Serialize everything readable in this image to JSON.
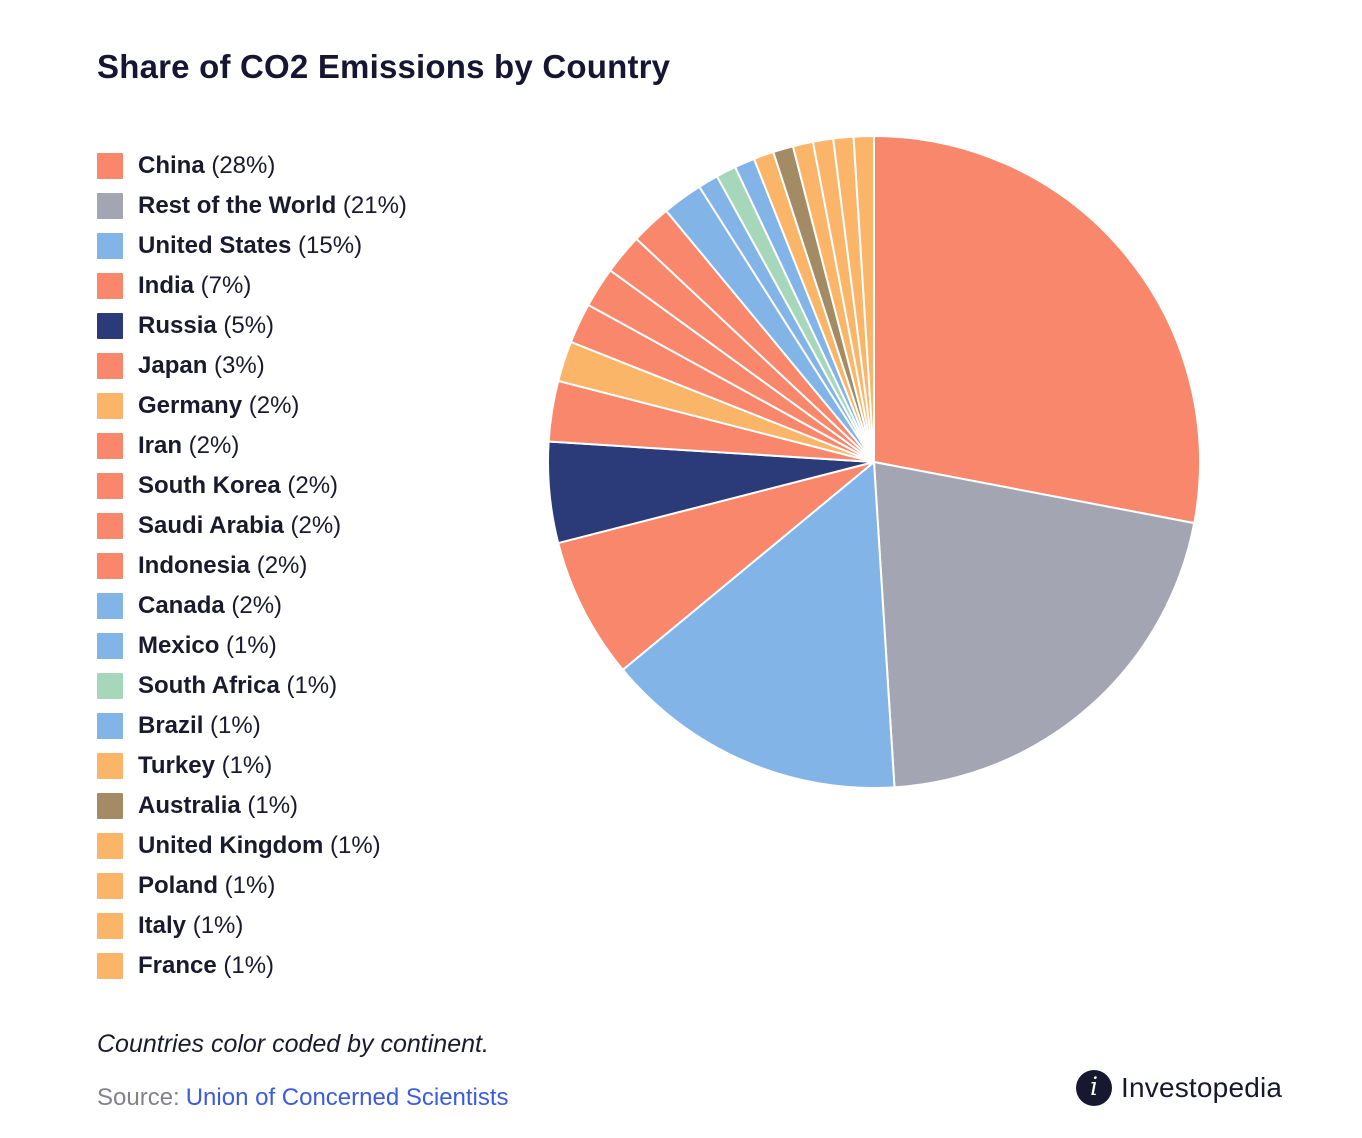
{
  "page": {
    "title": "Share of CO2 Emissions by Country",
    "note": "Countries color coded by continent.",
    "source_label": "Source:",
    "source_link": "Union of Concerned Scientists",
    "brand": "Investopedia"
  },
  "colors": {
    "asia_salmon": "#F8876B",
    "rest_of_world_gray": "#A3A6B2",
    "americas_blue": "#82B4E8",
    "russia_navy": "#2B3A78",
    "europe_amber": "#FBB569",
    "africa_green": "#A7D7BB",
    "oceania_brown": "#A38C65",
    "link_blue": "#3C5BE0",
    "brand_navy": "#16182F"
  },
  "chart_data": {
    "type": "pie",
    "title": "Share of CO2 Emissions by Country",
    "start_angle": "top",
    "direction": "clockwise",
    "legend_position": "left",
    "note": "Countries color coded by continent",
    "series": [
      {
        "label": "China",
        "value": 28,
        "color": "#F8876B"
      },
      {
        "label": "Rest of the World",
        "value": 21,
        "color": "#A3A6B2"
      },
      {
        "label": "United States",
        "value": 15,
        "color": "#82B4E8"
      },
      {
        "label": "India",
        "value": 7,
        "color": "#F8876B"
      },
      {
        "label": "Russia",
        "value": 5,
        "color": "#2B3A78"
      },
      {
        "label": "Japan",
        "value": 3,
        "color": "#F8876B"
      },
      {
        "label": "Germany",
        "value": 2,
        "color": "#FBB569"
      },
      {
        "label": "Iran",
        "value": 2,
        "color": "#F8876B"
      },
      {
        "label": "South Korea",
        "value": 2,
        "color": "#F8876B"
      },
      {
        "label": "Saudi Arabia",
        "value": 2,
        "color": "#F8876B"
      },
      {
        "label": "Indonesia",
        "value": 2,
        "color": "#F8876B"
      },
      {
        "label": "Canada",
        "value": 2,
        "color": "#82B4E8"
      },
      {
        "label": "Mexico",
        "value": 1,
        "color": "#82B4E8"
      },
      {
        "label": "South Africa",
        "value": 1,
        "color": "#A7D7BB"
      },
      {
        "label": "Brazil",
        "value": 1,
        "color": "#82B4E8"
      },
      {
        "label": "Turkey",
        "value": 1,
        "color": "#FBB569"
      },
      {
        "label": "Australia",
        "value": 1,
        "color": "#A38C65"
      },
      {
        "label": "United Kingdom",
        "value": 1,
        "color": "#FBB569"
      },
      {
        "label": "Poland",
        "value": 1,
        "color": "#FBB569"
      },
      {
        "label": "Italy",
        "value": 1,
        "color": "#FBB569"
      },
      {
        "label": "France",
        "value": 1,
        "color": "#FBB569"
      }
    ]
  }
}
